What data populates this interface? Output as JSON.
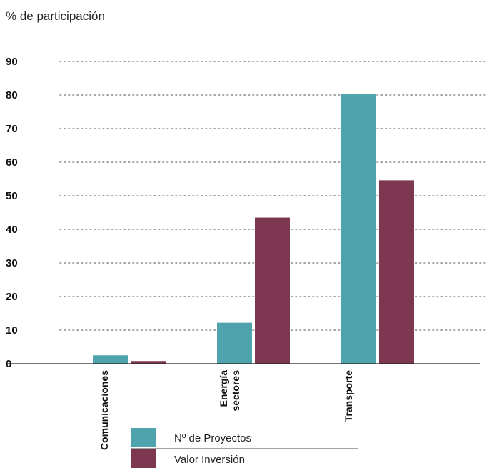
{
  "chart_data": {
    "type": "bar",
    "ylabel": "% de participación",
    "ylim": [
      0,
      90
    ],
    "yticks": [
      0,
      10,
      20,
      30,
      40,
      50,
      60,
      70,
      80,
      90
    ],
    "grid": "horizontal dotted",
    "categories": [
      [
        "Comunicaciones"
      ],
      [
        "Energía",
        "sectores"
      ],
      [
        "Transporte"
      ]
    ],
    "series": [
      {
        "name": "Nº de Proyectos",
        "color": "#4fa3ad",
        "values": [
          2.5,
          12.2,
          80.2
        ]
      },
      {
        "name": "Valor Inversión",
        "color": "#7e3750",
        "values": [
          0.8,
          43.5,
          54.6
        ]
      }
    ],
    "legend_position": "bottom-center"
  }
}
